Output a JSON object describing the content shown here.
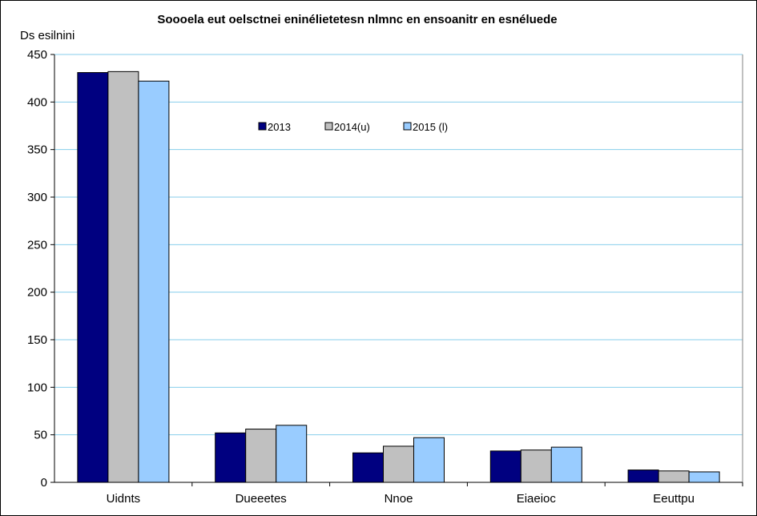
{
  "chart_data": {
    "type": "bar",
    "title": "Soooela eut oelsctnei eninélietetesn nlmnc en ensoanitr en esnéluede",
    "ylabel": "Ds esilnini",
    "xlabel": "",
    "categories": [
      "Uidnts",
      "Dueeetes",
      "Nnoe",
      "Eiaeioc",
      "Eeuttpu"
    ],
    "series": [
      {
        "name": "2013",
        "color": "#000080",
        "values": [
          431,
          52,
          31,
          33,
          13
        ]
      },
      {
        "name": "2014(u)",
        "color": "#C0C0C0",
        "values": [
          432,
          56,
          38,
          34,
          12
        ]
      },
      {
        "name": "2015 (l)",
        "color": "#99CCFF",
        "values": [
          422,
          60,
          47,
          37,
          11
        ]
      }
    ],
    "ylim": [
      0,
      450
    ],
    "yticks": [
      0,
      50,
      100,
      150,
      200,
      250,
      300,
      350,
      400,
      450
    ],
    "grid": true,
    "legend_position": "top-center"
  }
}
